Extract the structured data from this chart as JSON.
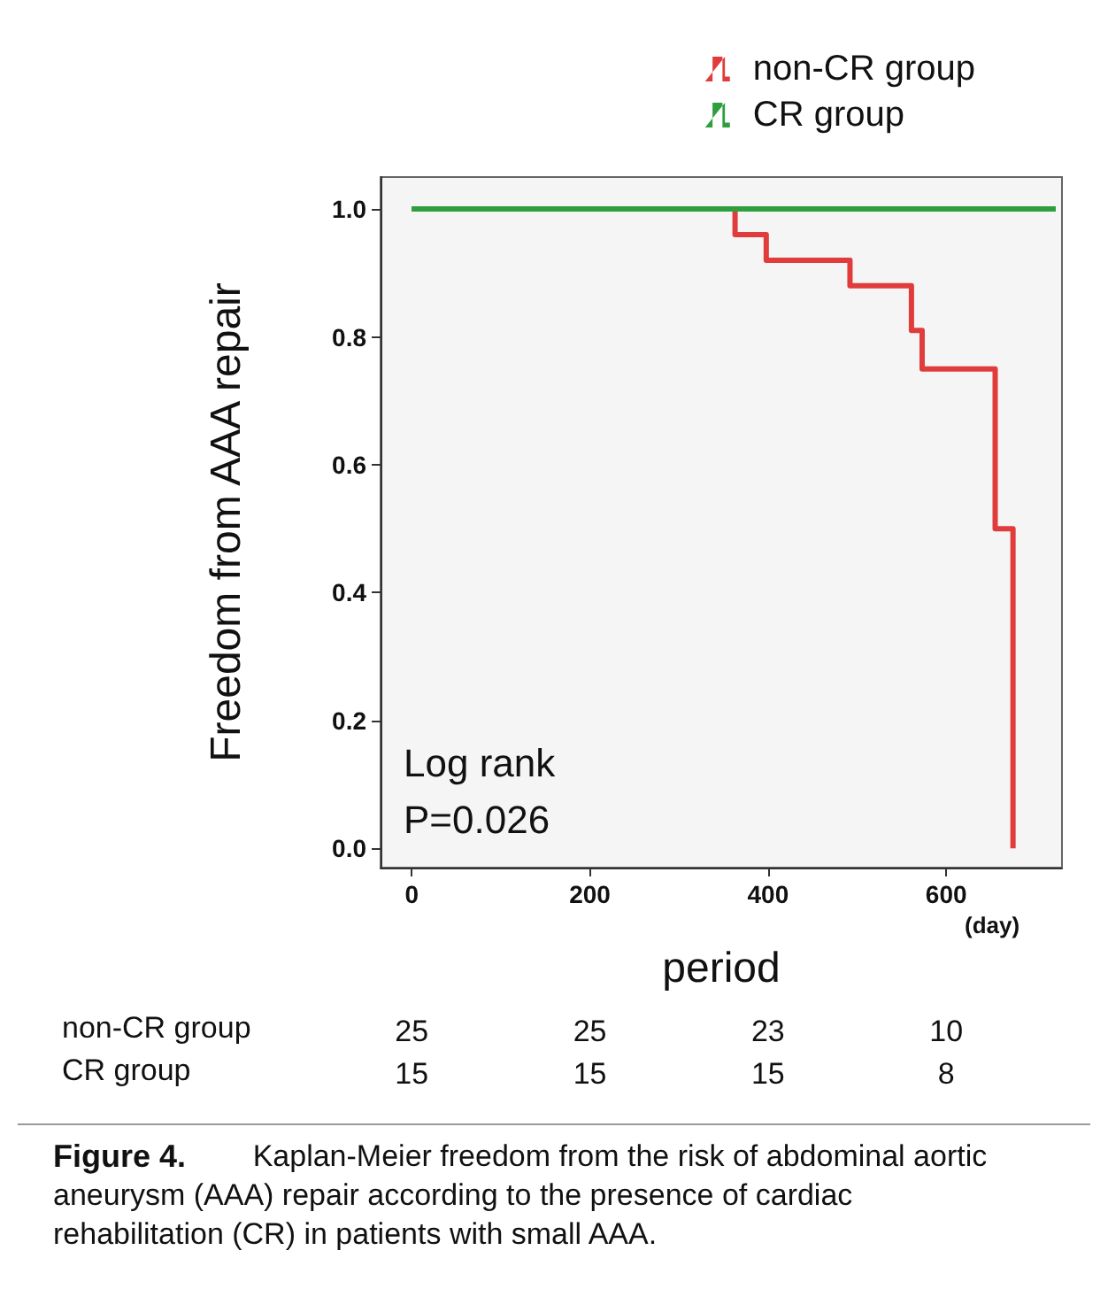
{
  "chart_data": {
    "type": "step",
    "xlabel": "period",
    "ylabel": "Freedom from AAA repair",
    "legend": "top right",
    "marker": "none",
    "line_style": "solid",
    "grid": false,
    "xlim": [
      -35,
      730
    ],
    "xticks": [
      0,
      200,
      400,
      600
    ],
    "ylim": [
      -0.03,
      1.05
    ],
    "yticks": [
      {
        "value": 0,
        "label": "0.0"
      },
      {
        "value": 0.2,
        "label": "0.2"
      },
      {
        "value": 0.4,
        "label": "0.4"
      },
      {
        "value": 0.6,
        "label": "0.6"
      },
      {
        "value": 0.8,
        "label": "0.8"
      },
      {
        "value": 1,
        "label": "1.0"
      }
    ],
    "series": [
      {
        "name": "non-CR group",
        "color": "#e03c3c",
        "x": [
          0,
          363,
          398,
          492,
          561,
          573,
          655,
          675
        ],
        "values": [
          1,
          0.96,
          0.92,
          0.88,
          0.81,
          0.75,
          0.5,
          0
        ]
      },
      {
        "name": "CR group",
        "color": "#2e9e3e",
        "x": [
          0,
          723
        ],
        "values": [
          1,
          1
        ]
      }
    ],
    "annotations": [
      "Log rank",
      "P=0.026",
      "(day)",
      "non-CR group",
      "25",
      "25",
      "23",
      "10",
      "CR group",
      "15",
      "15",
      "15",
      "8",
      "Figure 4.",
      "Kaplan-Meier freedom from the risk of abdominal aortic aneurysm (AAA) repair according to the presence of cardiac rehabilitation (CR) in patients with small AAA."
    ]
  }
}
